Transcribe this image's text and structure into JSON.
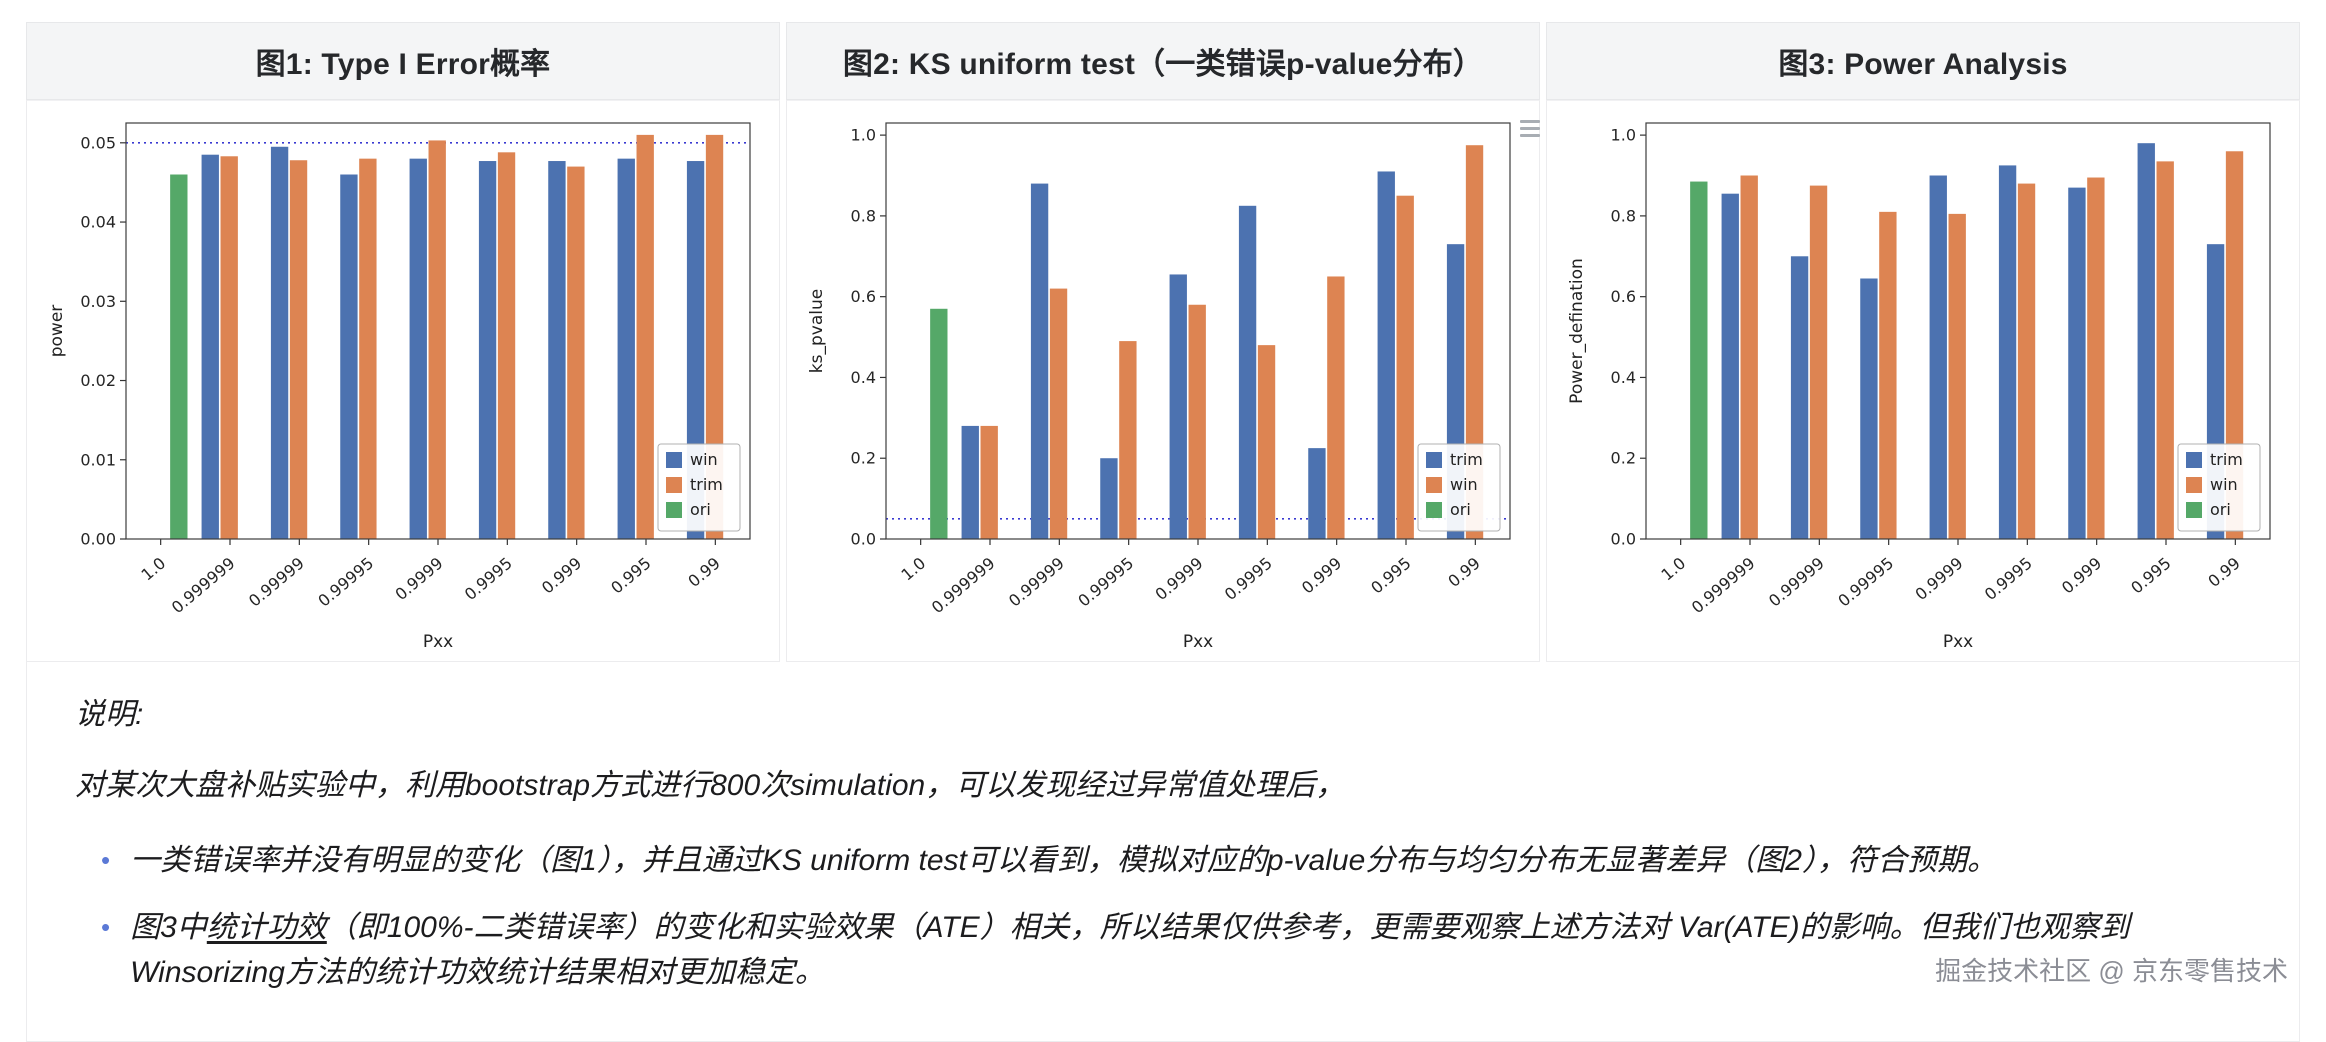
{
  "page": {
    "watermark": "掘金技术社区 @ 京东零售技术"
  },
  "icons": {
    "resize_handle": "triple-bar"
  },
  "panels": [
    {
      "title": "图1: Type I Error概率"
    },
    {
      "title": "图2: KS uniform test（一类错误p-value分布）"
    },
    {
      "title": "图3: Power Analysis"
    }
  ],
  "notes": {
    "heading": "说明:",
    "intro": "对某次大盘补贴实验中，利用bootstrap方式进行800次simulation，可以发现经过异常值处理后，",
    "bullets": [
      {
        "segments": [
          {
            "text": "一类错误率并没有明显的变化（图1），并且通过KS uniform test可以看到，模拟对应的p-value分布与均匀分布无显著差异（图2），符合预期。"
          }
        ]
      },
      {
        "segments": [
          {
            "text": "图3中"
          },
          {
            "text": "统计功效",
            "underline": true
          },
          {
            "text": "（即100%-二类错误率）的变化和实验效果（ATE）相关，所以结果仅供参考，更需要观察上述方法对 Var(ATE)的影响。但我们也观察到Winsorizing方法的统计功效统计结果相对更加稳定。"
          }
        ]
      }
    ]
  },
  "chart_data": [
    {
      "type": "bar",
      "title": "图1: Type I Error概率",
      "xlabel": "Pxx",
      "ylabel": "power",
      "ylim": [
        0,
        0.0525
      ],
      "refline": 0.05,
      "refline_color": "#3a3ad1",
      "legend_position": "lower right",
      "grid": false,
      "categories": [
        "1.0",
        "0.999999",
        "0.99999",
        "0.99995",
        "0.9999",
        "0.9995",
        "0.999",
        "0.995",
        "0.99"
      ],
      "yticks": [
        {
          "v": 0,
          "label": "0.00"
        },
        {
          "v": 0.01,
          "label": "0.01"
        },
        {
          "v": 0.02,
          "label": "0.02"
        },
        {
          "v": 0.03,
          "label": "0.03"
        },
        {
          "v": 0.04,
          "label": "0.04"
        },
        {
          "v": 0.05,
          "label": "0.05"
        }
      ],
      "series": [
        {
          "name": "win",
          "color": "#4C72B0",
          "values": [
            null,
            0.0485,
            0.0495,
            0.046,
            0.048,
            0.0477,
            0.0477,
            0.048,
            0.0477
          ]
        },
        {
          "name": "trim",
          "color": "#DD8452",
          "values": [
            null,
            0.0483,
            0.0478,
            0.048,
            0.0503,
            0.0488,
            0.047,
            0.051,
            0.051
          ]
        },
        {
          "name": "ori",
          "color": "#55A868",
          "values": [
            0.046,
            null,
            null,
            null,
            null,
            null,
            null,
            null,
            null
          ]
        }
      ]
    },
    {
      "type": "bar",
      "title": "图2: KS uniform test（一类错误p-value分布）",
      "xlabel": "Pxx",
      "ylabel": "ks_pvalue",
      "ylim": [
        0,
        1.03
      ],
      "refline": 0.05,
      "refline_color": "#3a3ad1",
      "legend_position": "lower right",
      "grid": false,
      "categories": [
        "1.0",
        "0.999999",
        "0.99999",
        "0.99995",
        "0.9999",
        "0.9995",
        "0.999",
        "0.995",
        "0.99"
      ],
      "yticks": [
        {
          "v": 0,
          "label": "0.0"
        },
        {
          "v": 0.2,
          "label": "0.2"
        },
        {
          "v": 0.4,
          "label": "0.4"
        },
        {
          "v": 0.6,
          "label": "0.6"
        },
        {
          "v": 0.8,
          "label": "0.8"
        },
        {
          "v": 1.0,
          "label": "1.0"
        }
      ],
      "series": [
        {
          "name": "trim",
          "color": "#4C72B0",
          "values": [
            null,
            0.28,
            0.88,
            0.2,
            0.655,
            0.825,
            0.225,
            0.91,
            0.73
          ]
        },
        {
          "name": "win",
          "color": "#DD8452",
          "values": [
            null,
            0.28,
            0.62,
            0.49,
            0.58,
            0.48,
            0.65,
            0.85,
            0.975
          ]
        },
        {
          "name": "ori",
          "color": "#55A868",
          "values": [
            0.57,
            null,
            null,
            null,
            null,
            null,
            null,
            null,
            null
          ]
        }
      ]
    },
    {
      "type": "bar",
      "title": "图3: Power Analysis",
      "xlabel": "Pxx",
      "ylabel": "Power_defination",
      "ylim": [
        0,
        1.03
      ],
      "refline": null,
      "legend_position": "lower right",
      "grid": false,
      "categories": [
        "1.0",
        "0.999999",
        "0.99999",
        "0.99995",
        "0.9999",
        "0.9995",
        "0.999",
        "0.995",
        "0.99"
      ],
      "yticks": [
        {
          "v": 0,
          "label": "0.0"
        },
        {
          "v": 0.2,
          "label": "0.2"
        },
        {
          "v": 0.4,
          "label": "0.4"
        },
        {
          "v": 0.6,
          "label": "0.6"
        },
        {
          "v": 0.8,
          "label": "0.8"
        },
        {
          "v": 1.0,
          "label": "1.0"
        }
      ],
      "series": [
        {
          "name": "trim",
          "color": "#4C72B0",
          "values": [
            null,
            0.855,
            0.7,
            0.645,
            0.9,
            0.925,
            0.87,
            0.98,
            0.73
          ]
        },
        {
          "name": "win",
          "color": "#DD8452",
          "values": [
            null,
            0.9,
            0.875,
            0.81,
            0.805,
            0.88,
            0.895,
            0.935,
            0.96
          ]
        },
        {
          "name": "ori",
          "color": "#55A868",
          "values": [
            0.885,
            null,
            null,
            null,
            null,
            null,
            null,
            null,
            null
          ]
        }
      ]
    }
  ]
}
